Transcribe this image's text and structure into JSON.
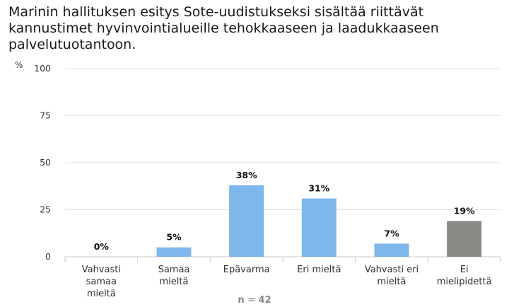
{
  "title": "Marinin hallituksen esitys Sote-uudistukseksi sisältää riittävät kannustimet hyvinvointialueille tehokkaaseen ja laadukkaaseen palvelutuotantoon.",
  "unit_label": "%",
  "n_label": "n = 42",
  "colors": {
    "bar": "#7db7ec",
    "bar_neutral": "#8a8b86",
    "grid": "#e3e3e3",
    "axis": "#c9c9c9"
  },
  "chart_data": {
    "type": "bar",
    "title": "Marinin hallituksen esitys Sote-uudistukseksi sisältää riittävät kannustimet hyvinvointialueille tehokkaaseen ja laadukkaaseen palvelutuotantoon.",
    "categories": [
      [
        "Vahvasti",
        "samaa",
        "mieltä"
      ],
      [
        "Samaa",
        "mieltä"
      ],
      [
        "Epävarma"
      ],
      [
        "Eri mieltä"
      ],
      [
        "Vahvasti eri",
        "mieltä"
      ],
      [
        "Ei",
        "mielipidettä"
      ]
    ],
    "values": [
      0,
      5,
      38,
      31,
      7,
      19
    ],
    "data_labels": [
      "0%",
      "5%",
      "38%",
      "31%",
      "7%",
      "19%"
    ],
    "bar_colors": [
      "#7db7ec",
      "#7db7ec",
      "#7db7ec",
      "#7db7ec",
      "#7db7ec",
      "#8a8b86"
    ],
    "ylabel": "%",
    "ylim": [
      0,
      100
    ],
    "yticks": [
      0,
      25,
      50,
      75,
      100
    ],
    "grid": true,
    "legend": "none"
  }
}
